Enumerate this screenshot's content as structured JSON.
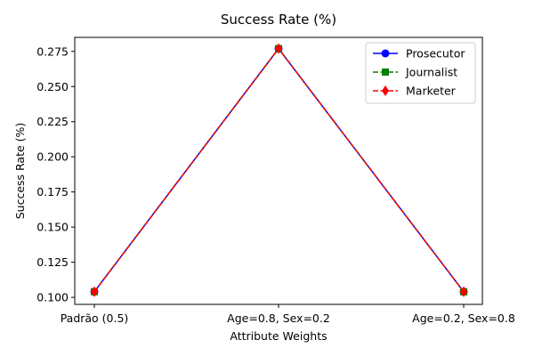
{
  "chart_data": {
    "type": "line",
    "title": "Success Rate (%)",
    "xlabel": "Attribute Weights",
    "ylabel": "Success Rate (%)",
    "categories": [
      "Padrão (0.5)",
      "Age=0.8, Sex=0.2",
      "Age=0.2, Sex=0.8"
    ],
    "ylim": [
      0.095,
      0.285
    ],
    "yticks": [
      0.1,
      0.125,
      0.15,
      0.175,
      0.2,
      0.225,
      0.25,
      0.275
    ],
    "ytick_labels": [
      "0.100",
      "0.125",
      "0.150",
      "0.175",
      "0.200",
      "0.225",
      "0.250",
      "0.275"
    ],
    "grid": false,
    "legend_position": "top-right",
    "series": [
      {
        "name": "Prosecutor",
        "values": [
          0.104,
          0.277,
          0.104
        ],
        "color": "#0000ff",
        "line_style": "solid",
        "marker": "circle"
      },
      {
        "name": "Journalist",
        "values": [
          0.104,
          0.277,
          0.104
        ],
        "color": "#008000",
        "line_style": "dashed",
        "marker": "square"
      },
      {
        "name": "Marketer",
        "values": [
          0.104,
          0.277,
          0.104
        ],
        "color": "#ff0000",
        "line_style": "dashed",
        "marker": "diamond"
      }
    ]
  }
}
